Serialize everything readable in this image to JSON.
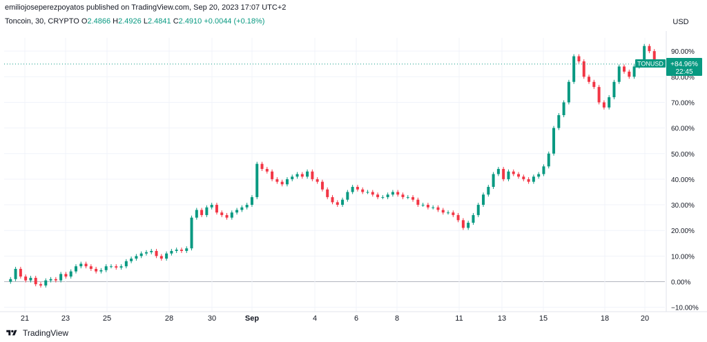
{
  "header": {
    "published": "emiliojoseperezpoyatos published on TradingView.com, Sep 20, 2023 17:07 UTC+2"
  },
  "legend": {
    "symbol": "Toncoin, 30, CRYPTO",
    "o_label": "O",
    "o_val": "2.4866",
    "h_label": "H",
    "h_val": "2.4926",
    "l_label": "L",
    "l_val": "2.4841",
    "c_label": "C",
    "c_val": "2.4910",
    "change": "+0.0044 (+0.18%)"
  },
  "currency": "USD",
  "price_badge": {
    "symbol": "TONUSD",
    "change": "+84.96%",
    "countdown": "22:45"
  },
  "footer": {
    "brand": "TradingView"
  },
  "colors": {
    "up": "#089981",
    "down": "#f23645",
    "grid": "#f0f3fa",
    "baseline": "#b2b5be",
    "axis_text": "#131722"
  },
  "chart_data": {
    "type": "line",
    "xlabel": "",
    "ylabel": "",
    "x_ticks": [
      "21",
      "23",
      "25",
      "28",
      "30",
      "Sep",
      "4",
      "6",
      "8",
      "11",
      "13",
      "15",
      "18",
      "20"
    ],
    "y_ticks": [
      "90.00%",
      "80.00%",
      "70.00%",
      "60.00%",
      "50.00%",
      "40.00%",
      "30.00%",
      "20.00%",
      "10.00%",
      "0.00%",
      "−10.00%"
    ],
    "ylim": [
      -10,
      100
    ],
    "last_value": 84.96,
    "series": [
      {
        "values": [
          0,
          1,
          5,
          2,
          0.5,
          1.5,
          -1,
          -1.5,
          0.5,
          1,
          0.5,
          3,
          2,
          4,
          6,
          7,
          6,
          5,
          4,
          4.5,
          6,
          6,
          5.5,
          6,
          8,
          9,
          10,
          11,
          11.5,
          12,
          10,
          9,
          11,
          12,
          12.5,
          12,
          13,
          25,
          28,
          26,
          29,
          30,
          27,
          26,
          25,
          27,
          28,
          29,
          30,
          33,
          46,
          44,
          43,
          40,
          39,
          38,
          40,
          41,
          42,
          41,
          43,
          40,
          39,
          36,
          33,
          31,
          30,
          32,
          35,
          37,
          36,
          35,
          35,
          34,
          33,
          33,
          34,
          35,
          34,
          33,
          33,
          32,
          30,
          30,
          29,
          29,
          28,
          27,
          27,
          26,
          24,
          21,
          23,
          26,
          30,
          34,
          37,
          42,
          44,
          40,
          43,
          42,
          41,
          40,
          39,
          41,
          42,
          45,
          50,
          60,
          65,
          70,
          78,
          88,
          86,
          80,
          78,
          76,
          70,
          68,
          72,
          78,
          84,
          82,
          80,
          84,
          86,
          92,
          90,
          86,
          85
        ]
      }
    ]
  }
}
